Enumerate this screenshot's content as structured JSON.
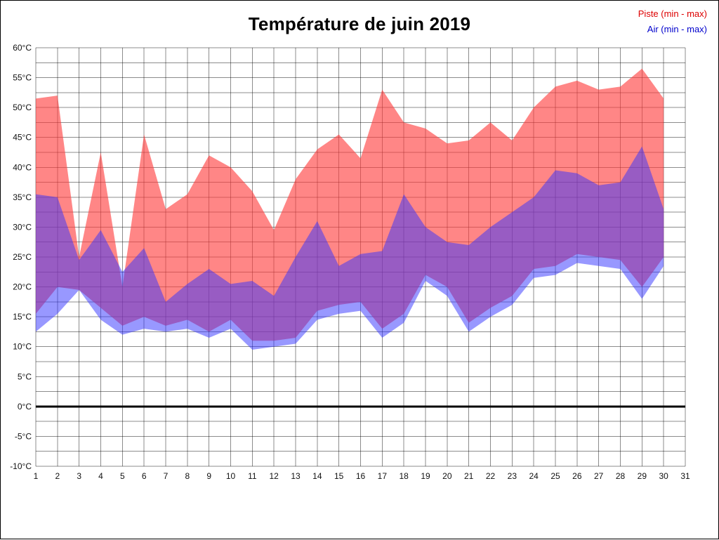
{
  "title": "Température de juin 2019",
  "legend": {
    "piste": "Piste (min - max)",
    "air": "Air (min - max)"
  },
  "colors": {
    "piste_fill": "#ff3c3c",
    "piste_opacity": 0.62,
    "air_fill": "#3232ff",
    "air_opacity": 0.5,
    "grid": "#000000",
    "grid_opacity": 0.45,
    "zero_line": "#000000",
    "legend_piste_text": "#dd0000",
    "legend_air_text": "#0000cc"
  },
  "chart_data": {
    "type": "area",
    "title": "Température de juin 2019",
    "xlabel": "",
    "ylabel": "",
    "xlim": [
      1,
      31
    ],
    "ylim": [
      -10,
      60
    ],
    "grid": true,
    "minor_y_step": 2.5,
    "zero_line": 0,
    "x_axis_ticks": [
      1,
      2,
      3,
      4,
      5,
      6,
      7,
      8,
      9,
      10,
      11,
      12,
      13,
      14,
      15,
      16,
      17,
      18,
      19,
      20,
      21,
      22,
      23,
      24,
      25,
      26,
      27,
      28,
      29,
      30,
      31
    ],
    "y_ticks": [
      60,
      55,
      50,
      45,
      40,
      35,
      30,
      25,
      20,
      15,
      10,
      5,
      0,
      -5,
      -10
    ],
    "y_tick_suffix": "°C",
    "x": [
      1,
      2,
      3,
      4,
      5,
      6,
      7,
      8,
      9,
      10,
      11,
      12,
      13,
      14,
      15,
      16,
      17,
      18,
      19,
      20,
      21,
      22,
      23,
      24,
      25,
      26,
      27,
      28,
      29,
      30
    ],
    "series": [
      {
        "name": "Piste (min - max)",
        "band": true,
        "max": [
          51.5,
          52,
          25,
          42.5,
          20,
          45.5,
          33,
          35.5,
          42,
          40,
          36,
          29.5,
          38,
          43,
          45.5,
          41.5,
          53,
          47.5,
          46.5,
          44,
          44.5,
          47.5,
          44.5,
          50,
          53.5,
          54.5,
          53,
          53.5,
          56.5,
          51.5
        ],
        "min": [
          15.5,
          20,
          19.5,
          16.5,
          13.5,
          15,
          13.5,
          14.5,
          12.5,
          14.5,
          11,
          11,
          11.5,
          16,
          17,
          17.5,
          13,
          15.5,
          22,
          20,
          14,
          16.5,
          18.5,
          23,
          23.5,
          25.5,
          25,
          24.5,
          20,
          25
        ]
      },
      {
        "name": "Air (min - max)",
        "band": true,
        "max": [
          35.5,
          35,
          24.5,
          29.5,
          22.5,
          26.5,
          17.5,
          20.5,
          23,
          20.5,
          21,
          18.5,
          25,
          31,
          23.5,
          25.5,
          26,
          35.5,
          30,
          27.5,
          27,
          30,
          32.5,
          35,
          39.5,
          39,
          37,
          37.5,
          43.5,
          33
        ],
        "min": [
          12.5,
          15.5,
          19.5,
          14.5,
          12,
          13,
          12.5,
          13,
          11.5,
          13,
          9.5,
          10,
          10.5,
          14.5,
          15.5,
          16,
          11.5,
          14,
          21,
          18.5,
          12.5,
          15,
          17,
          21.5,
          22,
          24,
          23.5,
          23,
          18,
          23.5
        ]
      }
    ]
  }
}
